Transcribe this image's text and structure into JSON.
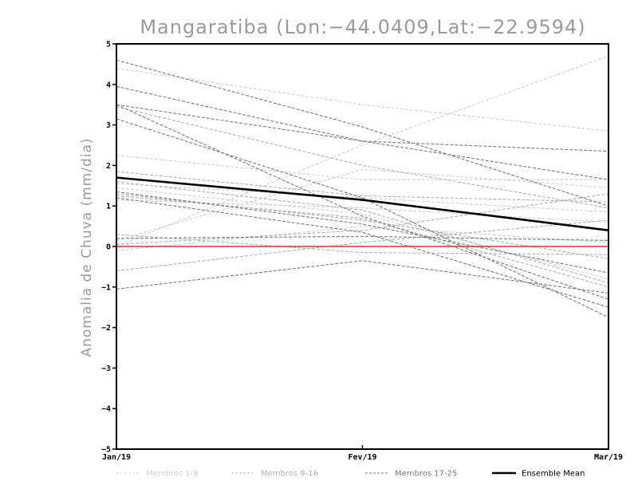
{
  "chart_data": {
    "type": "line",
    "title": "Mangaratiba (Lon:−44.0409,Lat:−22.9594)",
    "ylabel": "Anomalia de Chuva (mm/dia)",
    "xlabel": "",
    "categories": [
      "Jan/19",
      "Fev/19",
      "Mar/19"
    ],
    "ylim": [
      -5,
      5
    ],
    "yticks": [
      "−5",
      "−4",
      "−3",
      "−2",
      "−1",
      "0",
      "1",
      "2",
      "3",
      "4",
      "5"
    ],
    "ytick_values": [
      -5,
      -4,
      -3,
      -2,
      -1,
      0,
      1,
      2,
      3,
      4,
      5
    ],
    "grid": false,
    "legend_position": "bottom",
    "series_groups": [
      {
        "name": "Membros 1-8",
        "color": "#d0d0d0",
        "style": "dashed",
        "series": [
          [
            4.4,
            3.5,
            2.85
          ],
          [
            2.25,
            1.65,
            1.65
          ],
          [
            1.55,
            1.2,
            0.85
          ],
          [
            0.0,
            2.5,
            4.7
          ],
          [
            1.15,
            0.95,
            0.6
          ],
          [
            0.15,
            1.9,
            1.45
          ],
          [
            1.45,
            0.8,
            -0.8
          ],
          [
            -0.1,
            0.5,
            0.1
          ]
        ]
      },
      {
        "name": "Membros 9-16",
        "color": "#b0b0b0",
        "style": "dashed",
        "series": [
          [
            3.45,
            2.0,
            0.95
          ],
          [
            1.85,
            1.25,
            1.1
          ],
          [
            1.6,
            0.9,
            -0.9
          ],
          [
            1.3,
            0.65,
            -0.3
          ],
          [
            1.25,
            0.7,
            -1.0
          ],
          [
            0.3,
            -0.15,
            -0.2
          ],
          [
            -0.6,
            0.1,
            0.65
          ],
          [
            0.05,
            0.4,
            1.3
          ]
        ]
      },
      {
        "name": "Membros 17-25",
        "color": "#7a7a7a",
        "style": "dashed",
        "series": [
          [
            4.6,
            2.95,
            1.0
          ],
          [
            3.95,
            2.6,
            2.35
          ],
          [
            3.5,
            2.6,
            1.65
          ],
          [
            3.5,
            0.75,
            -1.3
          ],
          [
            3.15,
            1.2,
            -1.75
          ],
          [
            1.35,
            0.55,
            -0.65
          ],
          [
            0.2,
            0.25,
            0.15
          ],
          [
            -1.05,
            -0.35,
            -1.15
          ],
          [
            1.2,
            0.35,
            -1.5
          ]
        ]
      }
    ],
    "ensemble_mean": {
      "name": "Ensemble Mean",
      "color": "#000000",
      "values": [
        1.7,
        1.15,
        0.4
      ]
    },
    "zero_line": {
      "color": "#e03030",
      "value": 0
    },
    "legend": [
      {
        "label": "Membros 1-8",
        "color": "#d0d0d0",
        "style": "dashed"
      },
      {
        "label": "Membros 9-16",
        "color": "#b0b0b0",
        "style": "dashed"
      },
      {
        "label": "Membros 17-25",
        "color": "#7a7a7a",
        "style": "dashed"
      },
      {
        "label": "Ensemble Mean",
        "color": "#000000",
        "style": "solid"
      }
    ]
  }
}
